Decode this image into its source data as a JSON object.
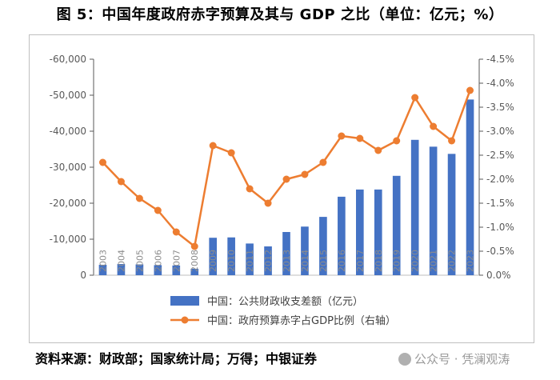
{
  "header": {
    "title": "图 5：中国年度政府赤字预算及其与 GDP 之比（单位：亿元；%）"
  },
  "footer": {
    "source": "资料来源：财政部；国家统计局；万得；中银证券"
  },
  "watermark": {
    "text": "公众号 · 凭澜观涛"
  },
  "colors": {
    "bar": "#4472C4",
    "line": "#ED7D31",
    "axis": "#595959",
    "grid": "#d9d9d9",
    "year_label": "#8c8c8c"
  },
  "chart_data": {
    "type": "bar+line",
    "categories": [
      "2003",
      "2004",
      "2005",
      "2006",
      "2007",
      "2008",
      "2009",
      "2010",
      "2011",
      "2012",
      "2013",
      "2014",
      "2015",
      "2016",
      "2017",
      "2018",
      "2019",
      "2020",
      "2021",
      "2022",
      "2023"
    ],
    "series": [
      {
        "name": "中国：公共财政收支差额（亿元）",
        "type": "bar",
        "axis": "left",
        "values": [
          -2900,
          -3100,
          -3000,
          -2800,
          -2700,
          -1800,
          -10400,
          -10500,
          -8800,
          -8000,
          -12000,
          -13500,
          -16200,
          -21800,
          -23800,
          -23800,
          -27600,
          -37600,
          -35700,
          -33700,
          -48800
        ]
      },
      {
        "name": "中国：政府预算赤字占GDP比例（右轴）",
        "type": "line",
        "axis": "right",
        "values": [
          -2.35,
          -1.95,
          -1.6,
          -1.35,
          -0.9,
          -0.6,
          -2.7,
          -2.55,
          -1.8,
          -1.5,
          -2.0,
          -2.1,
          -2.35,
          -2.9,
          -2.85,
          -2.6,
          -2.8,
          -3.7,
          -3.1,
          -2.8,
          -3.85
        ]
      }
    ],
    "left_axis": {
      "min": 0,
      "max": -60000,
      "ticks": [
        "0",
        "-10,000",
        "-20,000",
        "-30,000",
        "-40,000",
        "-50,000",
        "-60,000"
      ],
      "tick_values": [
        0,
        -10000,
        -20000,
        -30000,
        -40000,
        -50000,
        -60000
      ]
    },
    "right_axis": {
      "min": 0,
      "max": -4.5,
      "ticks": [
        "0.0%",
        "-0.5%",
        "-1.0%",
        "-1.5%",
        "-2.0%",
        "-2.5%",
        "-3.0%",
        "-3.5%",
        "-4.0%",
        "-4.5%"
      ],
      "tick_values": [
        0,
        -0.5,
        -1.0,
        -1.5,
        -2.0,
        -2.5,
        -3.0,
        -3.5,
        -4.0,
        -4.5
      ]
    },
    "legend": {
      "position": "bottom"
    }
  }
}
